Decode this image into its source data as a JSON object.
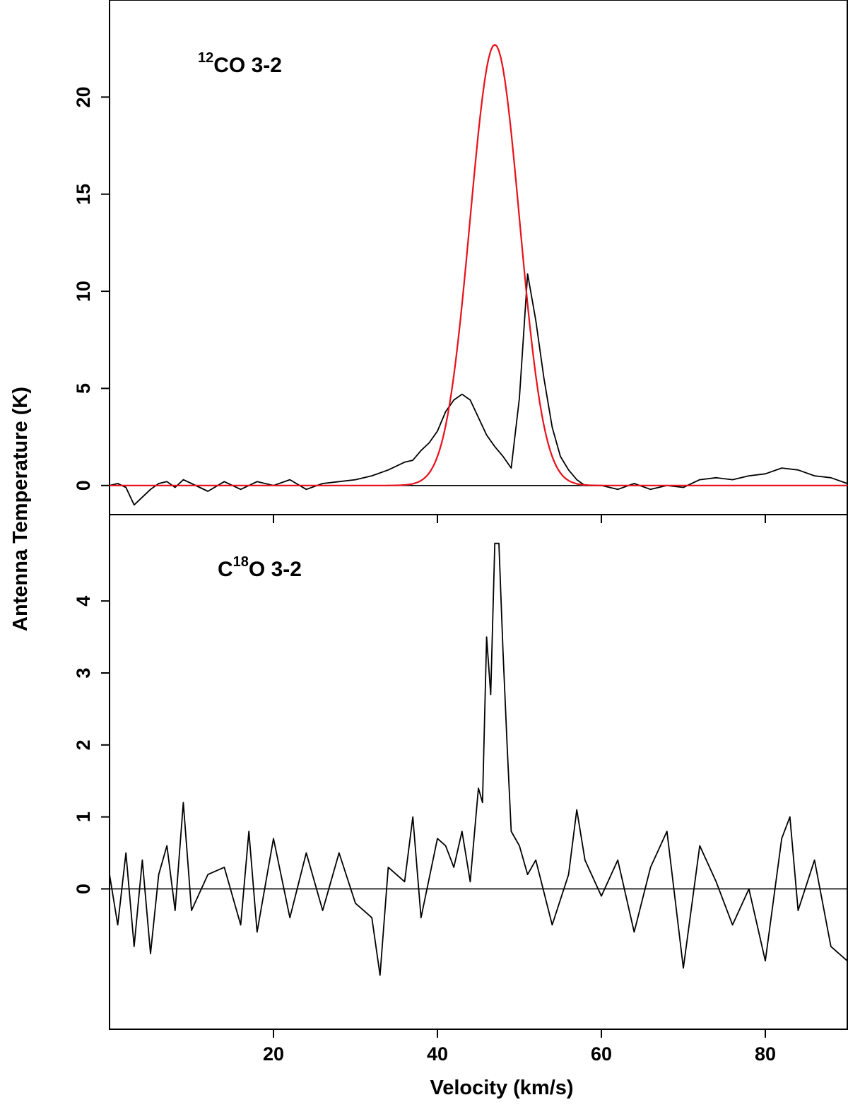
{
  "chart_data": {
    "type": "line",
    "xlabel": "Velocity (km/s)",
    "ylabel": "Antenna Temperature (K)",
    "xlim": [
      0,
      90
    ],
    "x_ticks": [
      20,
      40,
      60,
      80
    ],
    "x_tick_labels": [
      "20",
      "40",
      "60",
      "80"
    ],
    "panels": [
      {
        "label_main": "CO 3-2",
        "label_sup": "12",
        "label_prefix": "",
        "ylim": [
          -1.5,
          25
        ],
        "y_ticks": [
          0,
          5,
          10,
          15,
          20
        ],
        "y_tick_labels": [
          "0",
          "5",
          "10",
          "15",
          "20"
        ],
        "baseline": 0,
        "series": [
          {
            "color": "#000000",
            "x": [
              0,
              1,
              2,
              3,
              4,
              5,
              6,
              7,
              8,
              9,
              10,
              12,
              14,
              16,
              18,
              20,
              22,
              24,
              26,
              28,
              30,
              32,
              34,
              36,
              37,
              38,
              39,
              40,
              41,
              42,
              43,
              44,
              45,
              46,
              47,
              48,
              49,
              50,
              51,
              52,
              53,
              54,
              55,
              56,
              57,
              58,
              60,
              62,
              64,
              66,
              68,
              70,
              72,
              74,
              76,
              78,
              80,
              82,
              84,
              86,
              88,
              90
            ],
            "y": [
              0,
              0.1,
              -0.1,
              -1.0,
              -0.6,
              -0.2,
              0.1,
              0.2,
              -0.1,
              0.3,
              0.1,
              -0.3,
              0.2,
              -0.2,
              0.2,
              0.0,
              0.3,
              -0.2,
              0.1,
              0.2,
              0.3,
              0.5,
              0.8,
              1.2,
              1.3,
              1.8,
              2.2,
              2.8,
              3.8,
              4.4,
              4.7,
              4.4,
              3.5,
              2.6,
              2.0,
              1.5,
              0.9,
              4.5,
              10.9,
              8.5,
              5.5,
              3.0,
              1.5,
              0.8,
              0.3,
              0.0,
              0.0,
              -0.2,
              0.1,
              -0.2,
              0.0,
              -0.1,
              0.3,
              0.4,
              0.3,
              0.5,
              0.6,
              0.9,
              0.8,
              0.5,
              0.4,
              0.1
            ]
          },
          {
            "color": "#e8101a",
            "type": "gaussian",
            "amplitude": 22.7,
            "center": 47.0,
            "sigma": 3.0
          }
        ]
      },
      {
        "label_main": "O 3-2",
        "label_sup": "18",
        "label_prefix": "C",
        "ylim": [
          -1.95,
          5.2
        ],
        "y_ticks": [
          0,
          1,
          2,
          3,
          4
        ],
        "y_tick_labels": [
          "0",
          "1",
          "2",
          "3",
          "4"
        ],
        "baseline": 0,
        "series": [
          {
            "color": "#000000",
            "x": [
              0,
              1,
              2,
              3,
              4,
              5,
              6,
              7,
              8,
              9,
              10,
              12,
              14,
              16,
              17,
              18,
              20,
              22,
              24,
              26,
              28,
              30,
              32,
              33,
              34,
              36,
              37,
              38,
              40,
              41,
              42,
              43,
              44,
              45,
              45.5,
              46,
              46.5,
              47,
              47.5,
              48,
              48.5,
              49,
              50,
              51,
              52,
              54,
              56,
              57,
              58,
              60,
              62,
              64,
              66,
              68,
              70,
              72,
              74,
              76,
              78,
              80,
              82,
              83,
              84,
              86,
              88,
              90
            ],
            "y": [
              0.2,
              -0.5,
              0.5,
              -0.8,
              0.4,
              -0.9,
              0.2,
              0.6,
              -0.3,
              1.2,
              -0.3,
              0.2,
              0.3,
              -0.5,
              0.8,
              -0.6,
              0.7,
              -0.4,
              0.5,
              -0.3,
              0.5,
              -0.2,
              -0.4,
              -1.2,
              0.3,
              0.1,
              1.0,
              -0.4,
              0.7,
              0.6,
              0.3,
              0.8,
              0.1,
              1.4,
              1.2,
              3.5,
              2.7,
              4.8,
              4.8,
              3.3,
              2.0,
              0.8,
              0.6,
              0.2,
              0.4,
              -0.5,
              0.2,
              1.1,
              0.4,
              -0.1,
              0.4,
              -0.6,
              0.3,
              0.8,
              -1.1,
              0.6,
              0.1,
              -0.5,
              0.0,
              -1.0,
              0.7,
              1.0,
              -0.3,
              0.4,
              -0.8,
              -1.0
            ]
          }
        ]
      }
    ]
  }
}
